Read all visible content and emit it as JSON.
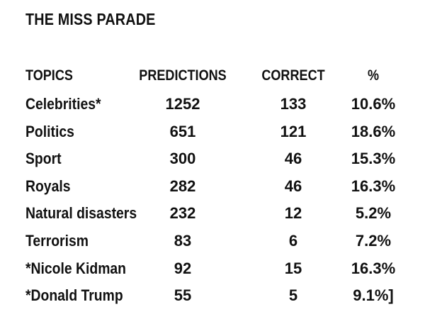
{
  "title": "THE MISS PARADE",
  "chart_data": {
    "type": "table",
    "columns": [
      "TOPICS",
      "PREDICTIONS",
      "CORRECT",
      "%"
    ],
    "rows": [
      {
        "topic": "Celebrities*",
        "predictions": "1252",
        "correct": "133",
        "percent": "10.6%"
      },
      {
        "topic": "Politics",
        "predictions": "651",
        "correct": "121",
        "percent": "18.6%"
      },
      {
        "topic": "Sport",
        "predictions": "300",
        "correct": "46",
        "percent": "15.3%"
      },
      {
        "topic": "Royals",
        "predictions": "282",
        "correct": "46",
        "percent": "16.3%"
      },
      {
        "topic": "Natural disasters",
        "predictions": "232",
        "correct": "12",
        "percent": "5.2%"
      },
      {
        "topic": "Terrorism",
        "predictions": "83",
        "correct": "6",
        "percent": "7.2%"
      },
      {
        "topic": "*Nicole Kidman",
        "predictions": "92",
        "correct": "15",
        "percent": "16.3%"
      },
      {
        "topic": "*Donald Trump",
        "predictions": "55",
        "correct": "5",
        "percent": "9.1%]"
      }
    ]
  }
}
